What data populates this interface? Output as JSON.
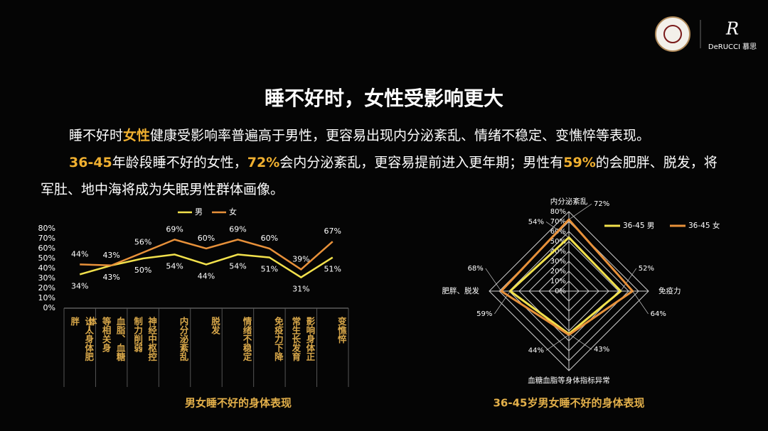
{
  "header": {
    "logo_text": "DeRUCCI 慕思"
  },
  "title": "睡不好时，女性受影响更大",
  "paragraphs": [
    {
      "segments": [
        {
          "text": "睡不好时",
          "highlight": false
        },
        {
          "text": "女性",
          "highlight": true
        },
        {
          "text": "健康受影响率普遍高于男性，更容易出现内分泌紊乱、情绪不稳定、变憔悴等表现。",
          "highlight": false
        }
      ]
    },
    {
      "segments": [
        {
          "text": "36-45",
          "highlight": true
        },
        {
          "text": "年龄段睡不好的女性，",
          "highlight": false
        },
        {
          "text": "72%",
          "highlight": true
        },
        {
          "text": "会内分泌紊乱，更容易提前进入更年期；男性有",
          "highlight": false
        },
        {
          "text": "59%",
          "highlight": true
        },
        {
          "text": "的会肥胖、脱发，将军肚、地中海将成为失眠男性群体画像。",
          "highlight": false
        }
      ]
    }
  ],
  "chart_data": [
    {
      "type": "line",
      "title": "男女睡不好的身体表现",
      "categories": [
        "让人身体肥胖",
        "血脂、血糖等相关身体…",
        "神经中枢控制力削弱",
        "内分泌紊乱",
        "脱发",
        "情绪不稳定",
        "免疫力下降",
        "影响身体正常生长发育",
        "变憔悴"
      ],
      "series": [
        {
          "name": "男",
          "color": "#f2e14c",
          "values": [
            34,
            43,
            50,
            54,
            44,
            54,
            51,
            31,
            51
          ],
          "value_labels": [
            "34%",
            "43%",
            "50%",
            "54%",
            "44%",
            "54%",
            "51%",
            "31%",
            "51%"
          ]
        },
        {
          "name": "女",
          "color": "#e8913a",
          "values": [
            44,
            43,
            56,
            69,
            60,
            69,
            60,
            39,
            67
          ],
          "value_labels": [
            "44%",
            "43%",
            "56%",
            "69%",
            "60%",
            "69%",
            "60%",
            "39%",
            "67%"
          ]
        }
      ],
      "ylim": [
        0,
        80
      ],
      "yticks": [
        {
          "value": 0,
          "label": "0%"
        },
        {
          "value": 10,
          "label": "10%"
        },
        {
          "value": 20,
          "label": "20%"
        },
        {
          "value": 30,
          "label": "30%"
        },
        {
          "value": 40,
          "label": "40%"
        },
        {
          "value": 50,
          "label": "50%"
        },
        {
          "value": 60,
          "label": "60%"
        },
        {
          "value": 70,
          "label": "70%"
        },
        {
          "value": 80,
          "label": "80%"
        }
      ]
    },
    {
      "type": "radar",
      "title": "36-45岁男女睡不好的身体表现",
      "categories": [
        "内分泌紊乱",
        "免疫力",
        "血糖血脂等身体指标异常",
        "肥胖、脱发"
      ],
      "series": [
        {
          "name": "36-45 男",
          "color": "#f2e14c",
          "values": [
            54,
            52,
            43,
            59
          ],
          "value_labels": [
            "54%",
            "52%",
            "43%",
            "59%"
          ]
        },
        {
          "name": "36-45 女",
          "color": "#e8913a",
          "values": [
            72,
            64,
            44,
            68
          ],
          "value_labels": [
            "72%",
            "64%",
            "44%",
            "68%"
          ]
        }
      ],
      "rlim": [
        0,
        80
      ],
      "rticks": [
        {
          "value": 0,
          "label": "0%"
        },
        {
          "value": 10,
          "label": "10%"
        },
        {
          "value": 20,
          "label": "20%"
        },
        {
          "value": 30,
          "label": "30%"
        },
        {
          "value": 40,
          "label": "40%"
        },
        {
          "value": 50,
          "label": "50%"
        },
        {
          "value": 60,
          "label": "60%"
        },
        {
          "value": 70,
          "label": "70%"
        },
        {
          "value": 80,
          "label": "80%"
        }
      ]
    }
  ]
}
